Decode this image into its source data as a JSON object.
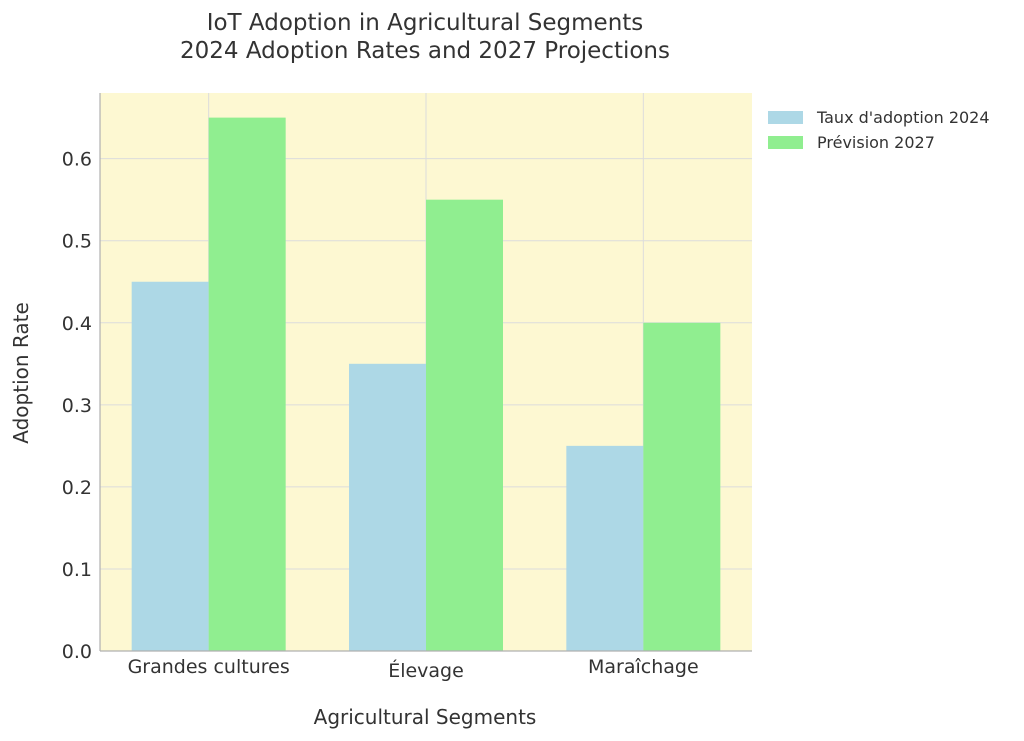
{
  "chart_data": {
    "type": "bar",
    "title_lines": [
      "IoT Adoption in Agricultural Segments",
      "2024 Adoption Rates and 2027 Projections"
    ],
    "xlabel": "Agricultural Segments",
    "ylabel": "Adoption Rate",
    "categories": [
      "Grandes cultures",
      "Élevage",
      "Maraîchage"
    ],
    "series": [
      {
        "name": "Taux d'adoption 2024",
        "values": [
          0.45,
          0.35,
          0.25
        ],
        "color": "#add8e6"
      },
      {
        "name": "Prévision 2027",
        "values": [
          0.65,
          0.55,
          0.4
        ],
        "color": "#90ee90"
      }
    ],
    "yticks": [
      "0.0",
      "0.1",
      "0.2",
      "0.3",
      "0.4",
      "0.5",
      "0.6"
    ],
    "ylim": [
      0,
      0.68
    ],
    "grid": true,
    "legend_position": "outside-top-right",
    "plot_background": "#fdf8d2"
  }
}
